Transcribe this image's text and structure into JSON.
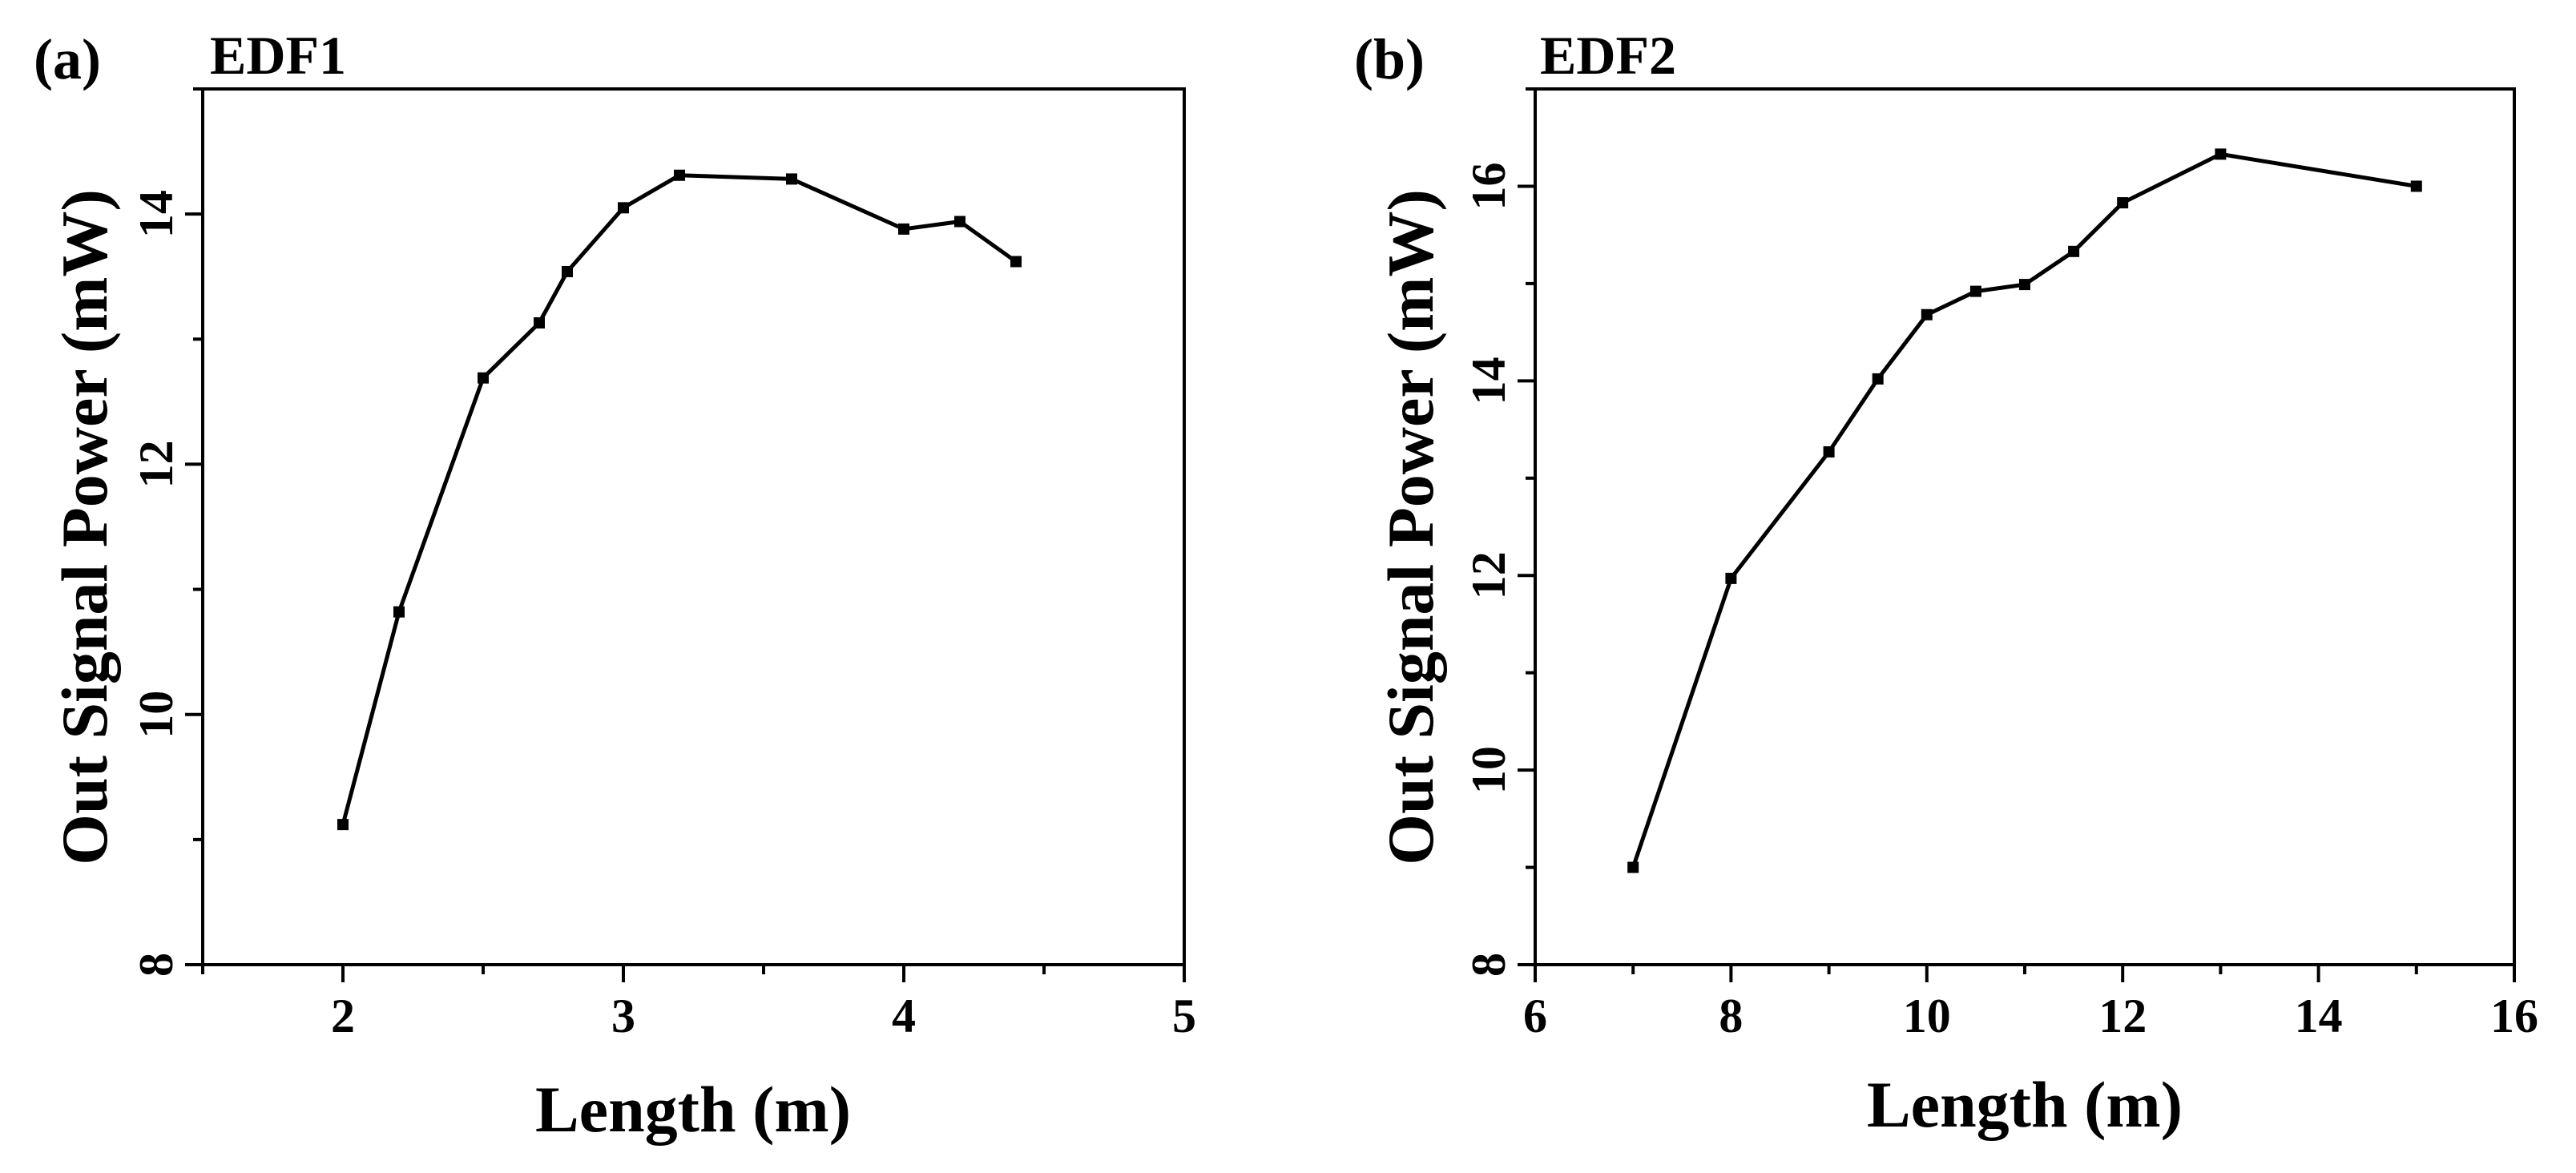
{
  "chart_data": [
    {
      "type": "line",
      "panel_label": "(a)",
      "title": "EDF1",
      "xlabel": "Length (m)",
      "ylabel": "Out Signal Power (mW)",
      "xlim": [
        1.5,
        5
      ],
      "ylim": [
        8,
        15
      ],
      "xticks": [
        2,
        3,
        4,
        5
      ],
      "xminor": [
        1.5,
        2.5,
        3.5,
        4.5
      ],
      "yticks": [
        8,
        10,
        12,
        14
      ],
      "yminor": [
        9,
        11,
        13,
        15
      ],
      "marker": "square",
      "series": [
        {
          "x": [
            2.0,
            2.2,
            2.5,
            2.7,
            2.8,
            3.0,
            3.2,
            3.6,
            4.0,
            4.2,
            4.4
          ],
          "y": [
            9.12,
            10.82,
            12.69,
            13.13,
            13.54,
            14.05,
            14.31,
            14.28,
            13.88,
            13.94,
            13.62
          ]
        }
      ]
    },
    {
      "type": "line",
      "panel_label": "(b)",
      "title": "EDF2",
      "xlabel": "Length (m)",
      "ylabel": "Out Signal Power (mW)",
      "xlim": [
        6,
        16
      ],
      "ylim": [
        8,
        17
      ],
      "xticks": [
        6,
        8,
        10,
        12,
        14,
        16
      ],
      "xminor": [
        7,
        9,
        11,
        13,
        15
      ],
      "yticks": [
        8,
        10,
        12,
        14,
        16
      ],
      "yminor": [
        9,
        11,
        13,
        15,
        17
      ],
      "marker": "square",
      "series": [
        {
          "x": [
            7,
            8,
            9,
            9.5,
            10,
            10.5,
            11,
            11.5,
            12,
            13,
            15
          ],
          "y": [
            9.0,
            11.97,
            13.27,
            14.02,
            14.68,
            14.92,
            14.99,
            15.33,
            15.83,
            16.33,
            16.0
          ]
        }
      ]
    }
  ]
}
